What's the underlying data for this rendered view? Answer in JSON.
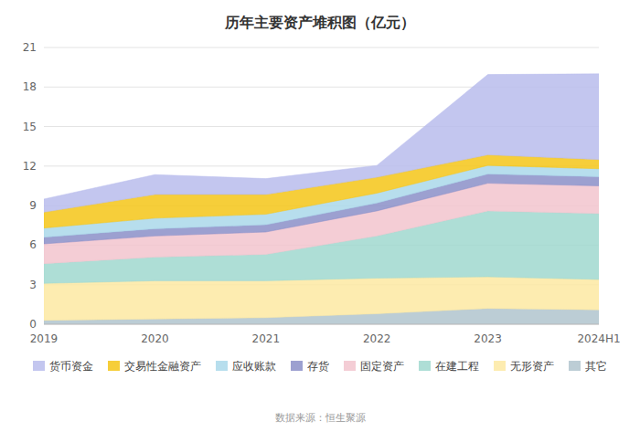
{
  "chart_data": {
    "type": "area",
    "stacked": true,
    "title": "历年主要资产堆积图（亿元）",
    "source": "数据来源：恒生聚源",
    "categories": [
      "2019",
      "2020",
      "2021",
      "2022",
      "2023",
      "2024H1"
    ],
    "series": [
      {
        "name": "其它",
        "values": [
          0.3,
          0.4,
          0.5,
          0.8,
          1.2,
          1.1
        ],
        "color": "#b0c4ce"
      },
      {
        "name": "无形资产",
        "values": [
          2.8,
          2.9,
          2.8,
          2.7,
          2.4,
          2.3
        ],
        "color": "#fde9a2"
      },
      {
        "name": "在建工程",
        "values": [
          1.5,
          1.8,
          2.0,
          3.2,
          5.0,
          5.0
        ],
        "color": "#a0d8cf"
      },
      {
        "name": "固定资产",
        "values": [
          1.5,
          1.6,
          1.7,
          1.9,
          2.1,
          2.1
        ],
        "color": "#f2c4ce"
      },
      {
        "name": "存货",
        "values": [
          0.5,
          0.55,
          0.55,
          0.6,
          0.7,
          0.7
        ],
        "color": "#8b8fc8"
      },
      {
        "name": "应收账款",
        "values": [
          0.7,
          0.8,
          0.8,
          0.75,
          0.65,
          0.6
        ],
        "color": "#aad8ea"
      },
      {
        "name": "交易性金融资产",
        "values": [
          1.2,
          1.8,
          1.5,
          1.2,
          0.8,
          0.7
        ],
        "color": "#f5c518"
      },
      {
        "name": "货币资金",
        "values": [
          1.0,
          1.5,
          1.2,
          0.9,
          6.1,
          6.5
        ],
        "color": "#b8bcec"
      }
    ],
    "ylim": [
      0,
      21
    ],
    "yticks": [
      0,
      3,
      6,
      9,
      12,
      15,
      18,
      21
    ],
    "grid": true,
    "legend": "bottom"
  }
}
